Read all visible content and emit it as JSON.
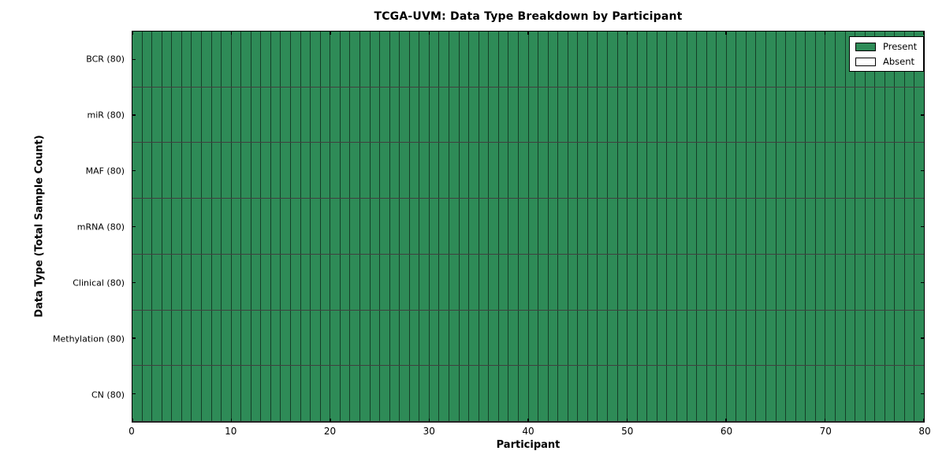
{
  "chart_data": {
    "type": "heatmap",
    "title": "TCGA-UVM: Data Type Breakdown by Participant",
    "xlabel": "Participant",
    "ylabel": "Data Type (Total Sample Count)",
    "x_range": [
      0,
      80
    ],
    "x_ticks": [
      0,
      10,
      20,
      30,
      40,
      50,
      60,
      70,
      80
    ],
    "n_participants": 80,
    "rows": [
      {
        "label": "BCR (80)",
        "total": 80,
        "present_count": 80
      },
      {
        "label": "miR (80)",
        "total": 80,
        "present_count": 80
      },
      {
        "label": "MAF (80)",
        "total": 80,
        "present_count": 80
      },
      {
        "label": "mRNA (80)",
        "total": 80,
        "present_count": 80
      },
      {
        "label": "Clinical (80)",
        "total": 80,
        "present_count": 80
      },
      {
        "label": "Methylation (80)",
        "total": 80,
        "present_count": 80
      },
      {
        "label": "CN (80)",
        "total": 80,
        "present_count": 80
      }
    ],
    "legend": {
      "position": "upper right",
      "entries": [
        {
          "label": "Present",
          "color": "#2e8b57"
        },
        {
          "label": "Absent",
          "color": "#ffffff"
        }
      ]
    },
    "colors": {
      "present": "#2e8b57",
      "absent": "#ffffff",
      "cell_border": "rgba(0,0,0,0.55)",
      "row_border": "rgba(0,0,0,0.75)",
      "axis": "#000000"
    },
    "grid": true
  }
}
